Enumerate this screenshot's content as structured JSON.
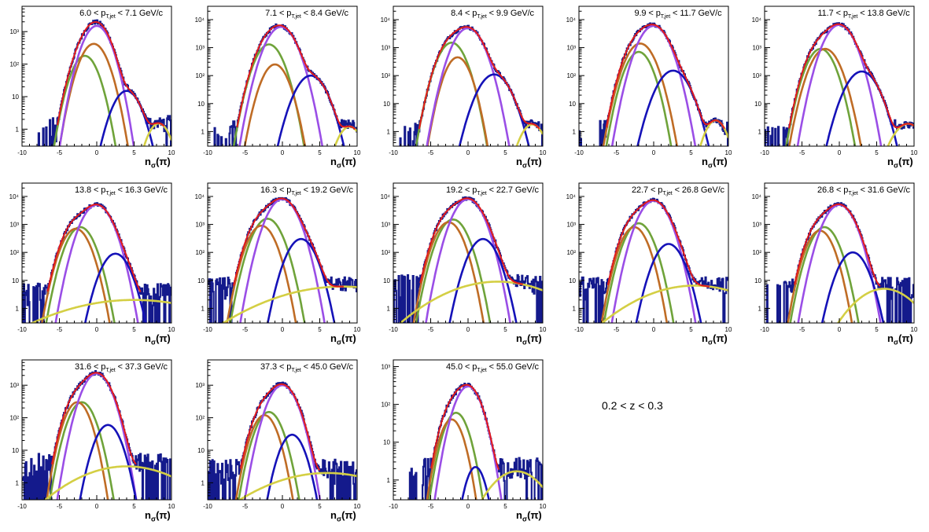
{
  "annotation": "0.2 < z < 0.3",
  "chart_data": [
    {
      "type": "line",
      "title_lo": "6.0",
      "title_hi": "7.1",
      "xlabel": "nσ(π)",
      "xlim": [
        -10,
        10
      ],
      "ylim": [
        0.3,
        6000
      ],
      "yscale": "log",
      "xticks": [
        -10,
        -5,
        0,
        5,
        10
      ],
      "yticks": [
        {
          "v": 1,
          "label": "1"
        },
        {
          "v": 10,
          "label": "10"
        },
        {
          "v": 100,
          "label": "10²"
        },
        {
          "v": 1000,
          "label": "10³"
        }
      ],
      "series": [
        {
          "color": "#a3a3a3",
          "mu": 0,
          "sigma": 1
        },
        {
          "color": "#a3a3a3",
          "mu": 0,
          "sigma": 1
        }
      ],
      "components": [
        {
          "color": "#6fa33a",
          "amp": 180,
          "mu": -1.6,
          "sigma": 1.15
        },
        {
          "color": "#bf6c25",
          "amp": 420,
          "mu": -0.4,
          "sigma": 1.2
        },
        {
          "color": "#9a4ee6",
          "amp": 1500,
          "mu": 0.0,
          "sigma": 1.2
        },
        {
          "color": "#1512b8",
          "amp": 15,
          "mu": 4.0,
          "sigma": 1.25
        },
        {
          "color": "#d4cf44",
          "amp": 1.5,
          "mu": 8.3,
          "sigma": 1.1
        }
      ],
      "noise_floor": 1.0
    },
    {
      "type": "line",
      "title_lo": "7.1",
      "title_hi": "8.4",
      "xlabel": "nσ(π)",
      "xlim": [
        -10,
        10
      ],
      "ylim": [
        0.3,
        30000
      ],
      "yscale": "log",
      "xticks": [
        -10,
        -5,
        0,
        5,
        10
      ],
      "yticks": [
        {
          "v": 1,
          "label": "1"
        },
        {
          "v": 10,
          "label": "10"
        },
        {
          "v": 100,
          "label": "10²"
        },
        {
          "v": 1000,
          "label": "10³"
        },
        {
          "v": 10000,
          "label": "10⁴"
        }
      ],
      "components": [
        {
          "color": "#6fa33a",
          "amp": 1300,
          "mu": -1.8,
          "sigma": 1.15
        },
        {
          "color": "#bf6c25",
          "amp": 250,
          "mu": -1.0,
          "sigma": 1.1
        },
        {
          "color": "#9a4ee6",
          "amp": 5500,
          "mu": -0.2,
          "sigma": 1.25
        },
        {
          "color": "#1512b8",
          "amp": 100,
          "mu": 3.8,
          "sigma": 1.3
        },
        {
          "color": "#d4cf44",
          "amp": 1.5,
          "mu": 9.0,
          "sigma": 1.1
        }
      ],
      "noise_floor": 1.0
    },
    {
      "type": "line",
      "title_lo": "8.4",
      "title_hi": "9.9",
      "xlabel": "nσ(π)",
      "xlim": [
        -10,
        10
      ],
      "ylim": [
        0.3,
        30000
      ],
      "yscale": "log",
      "xticks": [
        -10,
        -5,
        0,
        5,
        10
      ],
      "yticks": [
        {
          "v": 1,
          "label": "1"
        },
        {
          "v": 10,
          "label": "10"
        },
        {
          "v": 100,
          "label": "10²"
        },
        {
          "v": 1000,
          "label": "10³"
        },
        {
          "v": 10000,
          "label": "10⁴"
        }
      ],
      "components": [
        {
          "color": "#6fa33a",
          "amp": 1500,
          "mu": -2.2,
          "sigma": 1.15
        },
        {
          "color": "#bf6c25",
          "amp": 450,
          "mu": -1.4,
          "sigma": 1.05
        },
        {
          "color": "#9a4ee6",
          "amp": 5000,
          "mu": 0.0,
          "sigma": 1.25
        },
        {
          "color": "#1512b8",
          "amp": 110,
          "mu": 3.5,
          "sigma": 1.35
        },
        {
          "color": "#d4cf44",
          "amp": 1.8,
          "mu": 8.6,
          "sigma": 1.1
        }
      ],
      "noise_floor": 1.0
    },
    {
      "type": "line",
      "title_lo": "9.9",
      "title_hi": "11.7",
      "xlabel": "nσ(π)",
      "xlim": [
        -10,
        10
      ],
      "ylim": [
        0.3,
        30000
      ],
      "yscale": "log",
      "xticks": [
        -10,
        -5,
        0,
        5,
        10
      ],
      "yticks": [
        {
          "v": 1,
          "label": "1"
        },
        {
          "v": 10,
          "label": "10"
        },
        {
          "v": 100,
          "label": "10²"
        },
        {
          "v": 1000,
          "label": "10³"
        },
        {
          "v": 10000,
          "label": "10⁴"
        }
      ],
      "components": [
        {
          "color": "#6fa33a",
          "amp": 700,
          "mu": -2.0,
          "sigma": 1.1
        },
        {
          "color": "#bf6c25",
          "amp": 1400,
          "mu": -1.8,
          "sigma": 1.2
        },
        {
          "color": "#9a4ee6",
          "amp": 6000,
          "mu": 0.0,
          "sigma": 1.25
        },
        {
          "color": "#1512b8",
          "amp": 150,
          "mu": 2.6,
          "sigma": 1.35
        },
        {
          "color": "#d4cf44",
          "amp": 2.5,
          "mu": 8.3,
          "sigma": 1.0
        }
      ],
      "noise_floor": 1.0
    },
    {
      "type": "line",
      "title_lo": "11.7",
      "title_hi": "13.8",
      "xlabel": "nσ(π)",
      "xlim": [
        -10,
        10
      ],
      "ylim": [
        0.3,
        30000
      ],
      "yscale": "log",
      "xticks": [
        -10,
        -5,
        0,
        5,
        10
      ],
      "yticks": [
        {
          "v": 1,
          "label": "1"
        },
        {
          "v": 10,
          "label": "10"
        },
        {
          "v": 100,
          "label": "10²"
        },
        {
          "v": 1000,
          "label": "10³"
        },
        {
          "v": 10000,
          "label": "10⁴"
        }
      ],
      "components": [
        {
          "color": "#6fa33a",
          "amp": 900,
          "mu": -2.5,
          "sigma": 1.15
        },
        {
          "color": "#bf6c25",
          "amp": 900,
          "mu": -1.9,
          "sigma": 1.2
        },
        {
          "color": "#9a4ee6",
          "amp": 6500,
          "mu": 0.0,
          "sigma": 1.25
        },
        {
          "color": "#1512b8",
          "amp": 140,
          "mu": 3.0,
          "sigma": 1.35
        },
        {
          "color": "#d4cf44",
          "amp": 1.9,
          "mu": 9.2,
          "sigma": 1.4
        }
      ],
      "noise_floor": 1.0
    },
    {
      "type": "line",
      "title_lo": "13.8",
      "title_hi": "16.3",
      "xlabel": "nσ(π)",
      "xlim": [
        -10,
        10
      ],
      "ylim": [
        0.3,
        30000
      ],
      "yscale": "log",
      "xticks": [
        -10,
        -5,
        0,
        5,
        10
      ],
      "yticks": [
        {
          "v": 1,
          "label": "1"
        },
        {
          "v": 10,
          "label": "10"
        },
        {
          "v": 100,
          "label": "10²"
        },
        {
          "v": 1000,
          "label": "10³"
        },
        {
          "v": 10000,
          "label": "10⁴"
        }
      ],
      "components": [
        {
          "color": "#6fa33a",
          "amp": 800,
          "mu": -2.2,
          "sigma": 1.15
        },
        {
          "color": "#bf6c25",
          "amp": 700,
          "mu": -2.8,
          "sigma": 1.15
        },
        {
          "color": "#9a4ee6",
          "amp": 5000,
          "mu": 0.0,
          "sigma": 1.25
        },
        {
          "color": "#1512b8",
          "amp": 90,
          "mu": 2.5,
          "sigma": 1.2
        },
        {
          "color": "#d4cf44",
          "amp": 2.0,
          "mu": 5.0,
          "sigma": 7.0
        }
      ],
      "noise_floor": 3.0
    },
    {
      "type": "line",
      "title_lo": "16.3",
      "title_hi": "19.2",
      "xlabel": "nσ(π)",
      "xlim": [
        -10,
        10
      ],
      "ylim": [
        0.3,
        30000
      ],
      "yscale": "log",
      "xticks": [
        -10,
        -5,
        0,
        5,
        10
      ],
      "yticks": [
        {
          "v": 1,
          "label": "1"
        },
        {
          "v": 10,
          "label": "10"
        },
        {
          "v": 100,
          "label": "10²"
        },
        {
          "v": 1000,
          "label": "10³"
        },
        {
          "v": 10000,
          "label": "10⁴"
        }
      ],
      "components": [
        {
          "color": "#6fa33a",
          "amp": 1600,
          "mu": -2.0,
          "sigma": 1.2
        },
        {
          "color": "#bf6c25",
          "amp": 900,
          "mu": -2.8,
          "sigma": 1.15
        },
        {
          "color": "#9a4ee6",
          "amp": 8000,
          "mu": 0.0,
          "sigma": 1.25
        },
        {
          "color": "#1512b8",
          "amp": 300,
          "mu": 2.5,
          "sigma": 1.2
        },
        {
          "color": "#d4cf44",
          "amp": 6.0,
          "mu": 8.0,
          "sigma": 6.5
        }
      ],
      "noise_floor": 5.0
    },
    {
      "type": "line",
      "title_lo": "19.2",
      "title_hi": "22.7",
      "xlabel": "nσ(π)",
      "xlim": [
        -10,
        10
      ],
      "ylim": [
        0.3,
        30000
      ],
      "yscale": "log",
      "xticks": [
        -10,
        -5,
        0,
        5,
        10
      ],
      "yticks": [
        {
          "v": 1,
          "label": "1"
        },
        {
          "v": 10,
          "label": "10"
        },
        {
          "v": 100,
          "label": "10²"
        },
        {
          "v": 1000,
          "label": "10³"
        },
        {
          "v": 10000,
          "label": "10⁴"
        }
      ],
      "components": [
        {
          "color": "#6fa33a",
          "amp": 1500,
          "mu": -2.0,
          "sigma": 1.2
        },
        {
          "color": "#bf6c25",
          "amp": 1200,
          "mu": -2.6,
          "sigma": 1.15
        },
        {
          "color": "#9a4ee6",
          "amp": 8000,
          "mu": 0.0,
          "sigma": 1.25
        },
        {
          "color": "#1512b8",
          "amp": 300,
          "mu": 2.0,
          "sigma": 1.2
        },
        {
          "color": "#d4cf44",
          "amp": 9.0,
          "mu": 4.0,
          "sigma": 5.0
        }
      ],
      "noise_floor": 6.0
    },
    {
      "type": "line",
      "title_lo": "22.7",
      "title_hi": "26.8",
      "xlabel": "nσ(π)",
      "xlim": [
        -10,
        10
      ],
      "ylim": [
        0.3,
        30000
      ],
      "yscale": "log",
      "xticks": [
        -10,
        -5,
        0,
        5,
        10
      ],
      "yticks": [
        {
          "v": 1,
          "label": "1"
        },
        {
          "v": 10,
          "label": "10"
        },
        {
          "v": 100,
          "label": "10²"
        },
        {
          "v": 1000,
          "label": "10³"
        },
        {
          "v": 10000,
          "label": "10⁴"
        }
      ],
      "components": [
        {
          "color": "#6fa33a",
          "amp": 1100,
          "mu": -2.0,
          "sigma": 1.15
        },
        {
          "color": "#bf6c25",
          "amp": 800,
          "mu": -2.6,
          "sigma": 1.1
        },
        {
          "color": "#9a4ee6",
          "amp": 7000,
          "mu": 0.0,
          "sigma": 1.25
        },
        {
          "color": "#1512b8",
          "amp": 200,
          "mu": 2.0,
          "sigma": 1.2
        },
        {
          "color": "#d4cf44",
          "amp": 6.5,
          "mu": 5.5,
          "sigma": 5.0
        }
      ],
      "noise_floor": 5.0
    },
    {
      "type": "line",
      "title_lo": "26.8",
      "title_hi": "31.6",
      "xlabel": "nσ(π)",
      "xlim": [
        -10,
        10
      ],
      "ylim": [
        0.3,
        30000
      ],
      "yscale": "log",
      "xticks": [
        -10,
        -5,
        0,
        5,
        10
      ],
      "yticks": [
        {
          "v": 1,
          "label": "1"
        },
        {
          "v": 10,
          "label": "10"
        },
        {
          "v": 100,
          "label": "10²"
        },
        {
          "v": 1000,
          "label": "10³"
        },
        {
          "v": 10000,
          "label": "10⁴"
        }
      ],
      "components": [
        {
          "color": "#6fa33a",
          "amp": 800,
          "mu": -2.0,
          "sigma": 1.15
        },
        {
          "color": "#bf6c25",
          "amp": 600,
          "mu": -2.6,
          "sigma": 1.1
        },
        {
          "color": "#9a4ee6",
          "amp": 5000,
          "mu": 0.0,
          "sigma": 1.25
        },
        {
          "color": "#1512b8",
          "amp": 100,
          "mu": 1.8,
          "sigma": 1.2
        },
        {
          "color": "#d4cf44",
          "amp": 5.0,
          "mu": 6.0,
          "sigma": 2.6
        }
      ],
      "noise_floor": 5.0
    },
    {
      "type": "line",
      "title_lo": "31.6",
      "title_hi": "37.3",
      "xlabel": "nσ(π)",
      "xlim": [
        -10,
        10
      ],
      "ylim": [
        0.3,
        6000
      ],
      "yscale": "log",
      "xticks": [
        -10,
        -5,
        0,
        5,
        10
      ],
      "yticks": [
        {
          "v": 1,
          "label": "1"
        },
        {
          "v": 10,
          "label": "10"
        },
        {
          "v": 100,
          "label": "10²"
        },
        {
          "v": 1000,
          "label": "10³"
        }
      ],
      "components": [
        {
          "color": "#6fa33a",
          "amp": 300,
          "mu": -2.0,
          "sigma": 1.15
        },
        {
          "color": "#bf6c25",
          "amp": 300,
          "mu": -2.6,
          "sigma": 1.1
        },
        {
          "color": "#9a4ee6",
          "amp": 2300,
          "mu": 0.0,
          "sigma": 1.25
        },
        {
          "color": "#1512b8",
          "amp": 60,
          "mu": 1.5,
          "sigma": 1.15
        },
        {
          "color": "#d4cf44",
          "amp": 3.2,
          "mu": 4.0,
          "sigma": 5.0
        }
      ],
      "noise_floor": 3.0
    },
    {
      "type": "line",
      "title_lo": "37.3",
      "title_hi": "45.0",
      "xlabel": "nσ(π)",
      "xlim": [
        -10,
        10
      ],
      "ylim": [
        0.3,
        6000
      ],
      "yscale": "log",
      "xticks": [
        -10,
        -5,
        0,
        5,
        10
      ],
      "yticks": [
        {
          "v": 1,
          "label": "1"
        },
        {
          "v": 10,
          "label": "10"
        },
        {
          "v": 100,
          "label": "10²"
        },
        {
          "v": 1000,
          "label": "10³"
        }
      ],
      "components": [
        {
          "color": "#6fa33a",
          "amp": 150,
          "mu": -1.8,
          "sigma": 1.15
        },
        {
          "color": "#bf6c25",
          "amp": 120,
          "mu": -2.4,
          "sigma": 1.1
        },
        {
          "color": "#9a4ee6",
          "amp": 1000,
          "mu": 0.0,
          "sigma": 1.25
        },
        {
          "color": "#1512b8",
          "amp": 30,
          "mu": 1.3,
          "sigma": 1.1
        },
        {
          "color": "#d4cf44",
          "amp": 2.0,
          "mu": 6.0,
          "sigma": 6.0
        }
      ],
      "noise_floor": 2.0
    },
    {
      "type": "line",
      "title_lo": "45.0",
      "title_hi": "55.0",
      "xlabel": "nσ(π)",
      "xlim": [
        -10,
        10
      ],
      "ylim": [
        0.3,
        1500
      ],
      "yscale": "log",
      "xticks": [
        -10,
        -5,
        0,
        5,
        10
      ],
      "yticks": [
        {
          "v": 1,
          "label": "1"
        },
        {
          "v": 10,
          "label": "10"
        },
        {
          "v": 100,
          "label": "10²"
        },
        {
          "v": 1000,
          "label": "10³"
        }
      ],
      "components": [
        {
          "color": "#6fa33a",
          "amp": 60,
          "mu": -1.6,
          "sigma": 1.1
        },
        {
          "color": "#bf6c25",
          "amp": 40,
          "mu": -2.2,
          "sigma": 1.05
        },
        {
          "color": "#9a4ee6",
          "amp": 300,
          "mu": 0.0,
          "sigma": 1.2
        },
        {
          "color": "#1512b8",
          "amp": 2.2,
          "mu": 1.0,
          "sigma": 0.9
        },
        {
          "color": "#d4cf44",
          "amp": 1.7,
          "mu": 6.5,
          "sigma": 2.5
        }
      ],
      "noise_floor": 1.5
    }
  ]
}
